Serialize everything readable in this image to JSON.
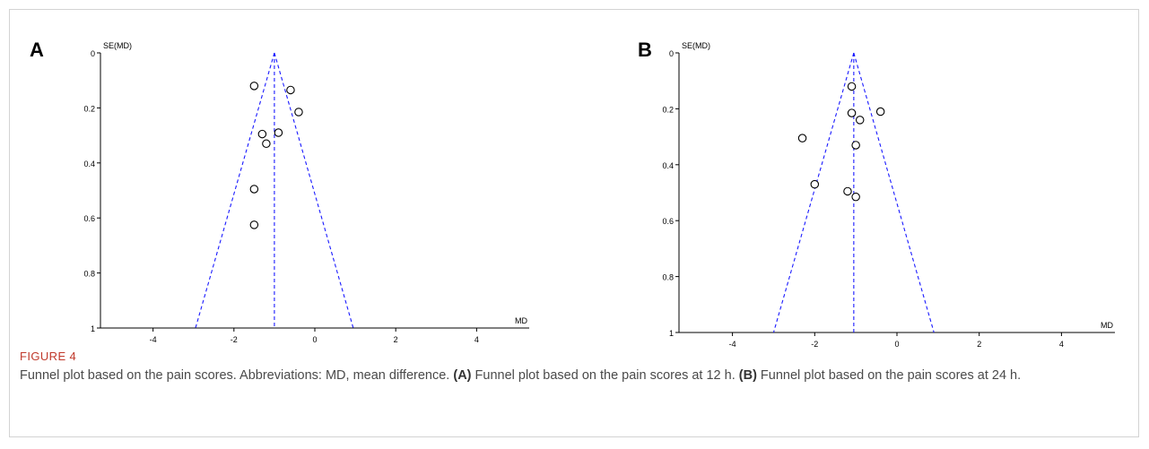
{
  "figure": {
    "label": "FIGURE 4",
    "caption_intro": "Funnel plot based on the pain scores. Abbreviations: MD, mean difference. ",
    "caption_a_tag": "(A)",
    "caption_a_text": " Funnel plot based on the pain scores at 12 h. ",
    "caption_b_tag": "(B)",
    "caption_b_text": " Funnel plot based on the pain scores at 24 h."
  },
  "chart_data": [
    {
      "panel": "A",
      "type": "scatter",
      "title": "",
      "xlabel": "MD",
      "ylabel": "SE(MD)",
      "xlim": [
        -5.3,
        5.3
      ],
      "ylim": [
        0,
        1
      ],
      "y_inverted": true,
      "x_ticks": [
        -4,
        -2,
        0,
        2,
        4
      ],
      "y_ticks": [
        0,
        0.2,
        0.4,
        0.6,
        0.8,
        1
      ],
      "y_tick_labels": [
        "0",
        "0.2",
        "0.4",
        "0.6",
        "0.8",
        "1"
      ],
      "pooled_md": -1.0,
      "funnel_base": [
        -2.95,
        0.95
      ],
      "points": [
        {
          "x": -1.5,
          "y": 0.12
        },
        {
          "x": -0.6,
          "y": 0.135
        },
        {
          "x": -0.4,
          "y": 0.215
        },
        {
          "x": -1.3,
          "y": 0.295
        },
        {
          "x": -0.9,
          "y": 0.29
        },
        {
          "x": -1.2,
          "y": 0.33
        },
        {
          "x": -1.5,
          "y": 0.495
        },
        {
          "x": -1.5,
          "y": 0.625
        }
      ]
    },
    {
      "panel": "B",
      "type": "scatter",
      "title": "",
      "xlabel": "MD",
      "ylabel": "SE(MD)",
      "xlim": [
        -5.3,
        5.3
      ],
      "ylim": [
        0,
        1
      ],
      "y_inverted": true,
      "x_ticks": [
        -4,
        -2,
        0,
        2,
        4
      ],
      "y_ticks": [
        0,
        0.2,
        0.4,
        0.6,
        0.8,
        1
      ],
      "y_tick_labels": [
        "0",
        "0.2",
        "0.4",
        "0.6",
        "0.8",
        "1"
      ],
      "pooled_md": -1.05,
      "funnel_base": [
        -3.0,
        0.9
      ],
      "points": [
        {
          "x": -1.1,
          "y": 0.12
        },
        {
          "x": -1.1,
          "y": 0.215
        },
        {
          "x": -0.9,
          "y": 0.24
        },
        {
          "x": -0.4,
          "y": 0.21
        },
        {
          "x": -2.3,
          "y": 0.305
        },
        {
          "x": -1.0,
          "y": 0.33
        },
        {
          "x": -2.0,
          "y": 0.47
        },
        {
          "x": -1.2,
          "y": 0.495
        },
        {
          "x": -1.0,
          "y": 0.515
        }
      ]
    }
  ]
}
